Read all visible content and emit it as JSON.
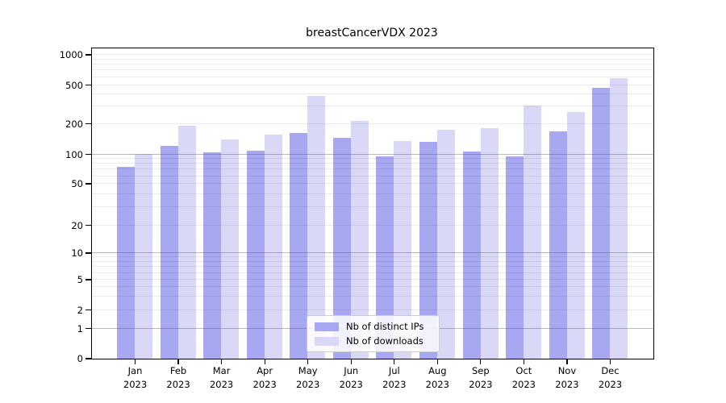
{
  "title": "breastCancerVDX 2023",
  "chart_data": {
    "type": "bar",
    "title": "breastCancerVDX 2023",
    "months": [
      "Jan",
      "Feb",
      "Mar",
      "Apr",
      "May",
      "Jun",
      "Jul",
      "Aug",
      "Sep",
      "Oct",
      "Nov",
      "Dec"
    ],
    "year": "2023",
    "categories": [
      "Jan 2023",
      "Feb 2023",
      "Mar 2023",
      "Apr 2023",
      "May 2023",
      "Jun 2023",
      "Jul 2023",
      "Aug 2023",
      "Sep 2023",
      "Oct 2023",
      "Nov 2023",
      "Dec 2023"
    ],
    "series": [
      {
        "name": "Nb of distinct IPs",
        "color": "#a8a8f2",
        "values": [
          74,
          120,
          104,
          108,
          161,
          144,
          94,
          132,
          106,
          95,
          166,
          465
        ]
      },
      {
        "name": "Nb of downloads",
        "color": "#d9d9f7",
        "values": [
          100,
          190,
          140,
          155,
          385,
          214,
          134,
          172,
          179,
          306,
          264,
          580
        ]
      }
    ],
    "yticks": [
      0,
      1,
      2,
      5,
      10,
      20,
      50,
      100,
      200,
      500,
      1000
    ],
    "ylim": [
      0,
      1000
    ],
    "yscale": "symlog",
    "grid": "on",
    "legend_position": "lower center",
    "colors": {
      "distinct_ips": "#a8a8f2",
      "downloads": "#d9d9f7"
    }
  }
}
